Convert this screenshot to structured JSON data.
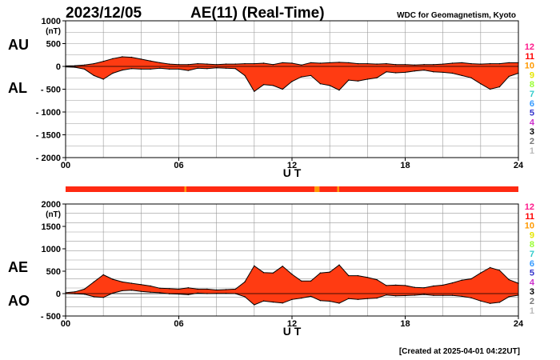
{
  "header": {
    "date": "2023/12/05",
    "title": "AE(11) (Real-Time)",
    "source": "WDC for Geomagnetism, Kyoto"
  },
  "footer": {
    "created": "[Created at 2025-04-01 04:22UT]"
  },
  "legend": {
    "station_counts": [
      "12",
      "11",
      "10",
      "9",
      "8",
      "7",
      "6",
      "5",
      "4",
      "3",
      "2",
      "1"
    ],
    "colors": [
      "#ff1a8c",
      "#ff0000",
      "#ff9900",
      "#e6e600",
      "#99ff33",
      "#33cccc",
      "#3399ff",
      "#3333cc",
      "#cc33cc",
      "#000000",
      "#777777",
      "#bbbbbb"
    ]
  },
  "colors": {
    "fill": "#ff3b12",
    "line": "#000000",
    "grid": "#999999",
    "band": "#ff2a12"
  },
  "chart_data": [
    {
      "type": "area",
      "name": "AU/AL",
      "labels": {
        "upper": "AU",
        "lower": "AL"
      },
      "xlabel": "U T",
      "unit": "(nT)",
      "xlim": [
        0,
        24
      ],
      "ylim": [
        -2000,
        1000
      ],
      "xticks": [
        {
          "v": 0,
          "t": "00"
        },
        {
          "v": 6,
          "t": "06"
        },
        {
          "v": 12,
          "t": "12"
        },
        {
          "v": 18,
          "t": "18"
        },
        {
          "v": 24,
          "t": "24"
        }
      ],
      "yticks": [
        {
          "v": 1000,
          "t": "1000"
        },
        {
          "v": 500,
          "t": "500"
        },
        {
          "v": 0,
          "t": "0"
        },
        {
          "v": -500,
          "t": "- 500"
        },
        {
          "v": -1000,
          "t": "- 1000"
        },
        {
          "v": -1500,
          "t": "- 1500"
        },
        {
          "v": -2000,
          "t": "- 2000"
        }
      ],
      "x": [
        0,
        0.5,
        1,
        1.5,
        2,
        2.5,
        3,
        3.5,
        4,
        4.5,
        5,
        5.5,
        6,
        6.5,
        7,
        7.5,
        8,
        8.5,
        9,
        9.5,
        10,
        10.5,
        11,
        11.5,
        12,
        12.5,
        13,
        13.5,
        14,
        14.5,
        15,
        15.5,
        16,
        16.5,
        17,
        17.5,
        18,
        18.5,
        19,
        19.5,
        20,
        20.5,
        21,
        21.5,
        22,
        22.5,
        23,
        23.5,
        24
      ],
      "series": [
        {
          "name": "AU",
          "values": [
            10,
            15,
            30,
            60,
            110,
            170,
            210,
            200,
            160,
            120,
            80,
            50,
            40,
            40,
            60,
            50,
            40,
            50,
            50,
            60,
            60,
            70,
            40,
            80,
            70,
            30,
            80,
            70,
            80,
            90,
            80,
            60,
            60,
            50,
            60,
            40,
            40,
            30,
            40,
            40,
            50,
            70,
            80,
            60,
            50,
            60,
            60,
            80,
            80
          ]
        },
        {
          "name": "AL",
          "values": [
            -10,
            -20,
            -60,
            -200,
            -280,
            -150,
            -80,
            -50,
            -60,
            -60,
            -40,
            -60,
            -60,
            -90,
            -40,
            -50,
            -30,
            -40,
            -50,
            -200,
            -550,
            -400,
            -420,
            -500,
            -330,
            -230,
            -200,
            -380,
            -420,
            -520,
            -300,
            -320,
            -280,
            -250,
            -120,
            -140,
            -130,
            -100,
            -80,
            -120,
            -130,
            -150,
            -200,
            -250,
            -380,
            -500,
            -450,
            -220,
            -150
          ]
        }
      ]
    },
    {
      "type": "area",
      "name": "AE/AO",
      "labels": {
        "upper": "AE",
        "lower": "AO"
      },
      "xlabel": "U T",
      "unit": "(nT)",
      "xlim": [
        0,
        24
      ],
      "ylim": [
        -500,
        2000
      ],
      "xticks": [
        {
          "v": 0,
          "t": "00"
        },
        {
          "v": 6,
          "t": "06"
        },
        {
          "v": 12,
          "t": "12"
        },
        {
          "v": 18,
          "t": "18"
        },
        {
          "v": 24,
          "t": "24"
        }
      ],
      "yticks": [
        {
          "v": 2000,
          "t": "2000"
        },
        {
          "v": 1500,
          "t": "1500"
        },
        {
          "v": 1000,
          "t": "1000"
        },
        {
          "v": 500,
          "t": "500"
        },
        {
          "v": 0,
          "t": "0"
        },
        {
          "v": -500,
          "t": "- 500"
        }
      ],
      "x": [
        0,
        0.5,
        1,
        1.5,
        2,
        2.5,
        3,
        3.5,
        4,
        4.5,
        5,
        5.5,
        6,
        6.5,
        7,
        7.5,
        8,
        8.5,
        9,
        9.5,
        10,
        10.5,
        11,
        11.5,
        12,
        12.5,
        13,
        13.5,
        14,
        14.5,
        15,
        15.5,
        16,
        16.5,
        17,
        17.5,
        18,
        18.5,
        19,
        19.5,
        20,
        20.5,
        21,
        21.5,
        22,
        22.5,
        23,
        23.5,
        24
      ],
      "series": [
        {
          "name": "AE",
          "values": [
            20,
            40,
            100,
            260,
            420,
            320,
            260,
            230,
            200,
            170,
            120,
            110,
            100,
            130,
            100,
            100,
            80,
            90,
            100,
            260,
            620,
            470,
            460,
            610,
            430,
            280,
            280,
            460,
            480,
            640,
            400,
            400,
            360,
            310,
            180,
            190,
            180,
            140,
            130,
            170,
            190,
            240,
            300,
            330,
            460,
            580,
            520,
            310,
            230
          ]
        },
        {
          "name": "AO",
          "values": [
            0,
            -3,
            -15,
            -70,
            -85,
            10,
            65,
            75,
            50,
            30,
            20,
            -5,
            -10,
            -25,
            10,
            0,
            5,
            5,
            0,
            -70,
            -250,
            -165,
            -190,
            -210,
            -130,
            -100,
            -60,
            -155,
            -170,
            -215,
            -110,
            -130,
            -110,
            -100,
            -30,
            -50,
            -45,
            -35,
            -20,
            -40,
            -40,
            -40,
            -60,
            -95,
            -165,
            -220,
            -195,
            -70,
            -35
          ]
        }
      ]
    }
  ],
  "station_band": {
    "segments": [
      {
        "from": 0,
        "to": 6.3,
        "count": "11"
      },
      {
        "from": 6.3,
        "to": 6.4,
        "count": "10"
      },
      {
        "from": 6.4,
        "to": 13.2,
        "count": "11"
      },
      {
        "from": 13.2,
        "to": 13.45,
        "count": "10"
      },
      {
        "from": 13.45,
        "to": 14.4,
        "count": "11"
      },
      {
        "from": 14.4,
        "to": 14.5,
        "count": "10"
      },
      {
        "from": 14.5,
        "to": 24,
        "count": "11"
      }
    ]
  }
}
